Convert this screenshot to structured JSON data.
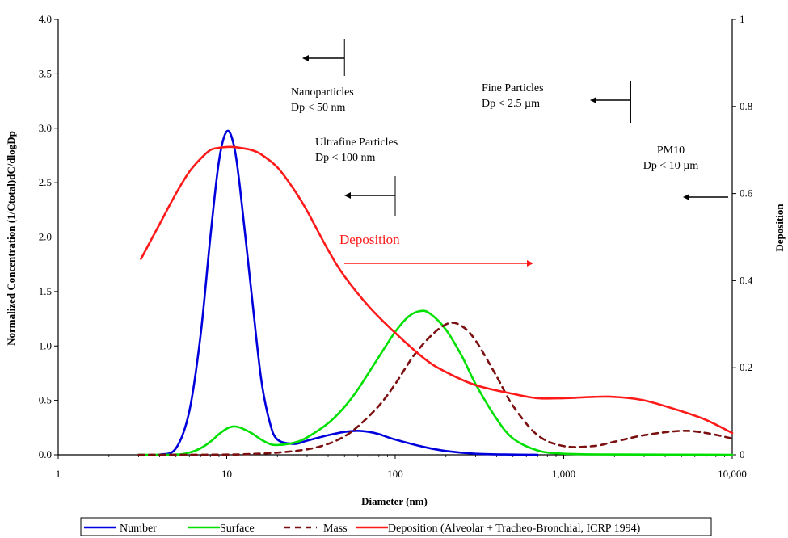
{
  "chart_data": {
    "type": "line",
    "xlabel": "Diameter (nm)",
    "ylabel": "Normalized Concentration  (1/Ctotal)dC/dlogDp",
    "y2label": "Deposition",
    "xscale": "log",
    "xlim": [
      1,
      10000
    ],
    "ylim": [
      0,
      4.0
    ],
    "y2lim": [
      0,
      1
    ],
    "x_ticks": [
      1,
      10,
      100,
      1000,
      10000
    ],
    "x_tick_labels": [
      "1",
      "10",
      "100",
      "1,000",
      "10,000"
    ],
    "y_ticks": [
      0,
      0.5,
      1.0,
      1.5,
      2.0,
      2.5,
      3.0,
      3.5,
      4.0
    ],
    "y_tick_labels": [
      "0.0",
      "0.5",
      "1.0",
      "1.5",
      "2.0",
      "2.5",
      "3.0",
      "3.5",
      "4.0"
    ],
    "y2_ticks": [
      0,
      0.2,
      0.4,
      0.6,
      0.8,
      1
    ],
    "y2_tick_labels": [
      "0",
      "0.2",
      "0.4",
      "0.6",
      "0.8",
      "1"
    ],
    "grid": false,
    "legend_position": "bottom",
    "series": [
      {
        "name": "Number",
        "color": "#0000dd",
        "dash": "solid",
        "axis": "left",
        "x": [
          3,
          4,
          5,
          6,
          7,
          8,
          9,
          10,
          11,
          12,
          14,
          16,
          18,
          20,
          25,
          30,
          40,
          50,
          60,
          70,
          80,
          100,
          150,
          200,
          300,
          500,
          700
        ],
        "y": [
          0,
          0.002,
          0.06,
          0.4,
          1.1,
          2.0,
          2.7,
          2.97,
          2.85,
          2.45,
          1.5,
          0.7,
          0.3,
          0.14,
          0.1,
          0.13,
          0.18,
          0.21,
          0.22,
          0.21,
          0.19,
          0.14,
          0.07,
          0.035,
          0.01,
          0.002,
          0
        ]
      },
      {
        "name": "Surface",
        "color": "#00e000",
        "dash": "solid",
        "axis": "left",
        "x": [
          3,
          5,
          6,
          7,
          8,
          9,
          10,
          11,
          12,
          14,
          16,
          18,
          20,
          25,
          30,
          40,
          50,
          60,
          80,
          100,
          120,
          140,
          160,
          200,
          250,
          300,
          400,
          500,
          700,
          1000,
          2000,
          10000
        ],
        "y": [
          0,
          0.002,
          0.02,
          0.06,
          0.12,
          0.19,
          0.24,
          0.26,
          0.25,
          0.2,
          0.14,
          0.1,
          0.09,
          0.11,
          0.16,
          0.29,
          0.44,
          0.6,
          0.9,
          1.13,
          1.27,
          1.32,
          1.3,
          1.15,
          0.9,
          0.65,
          0.33,
          0.15,
          0.04,
          0.01,
          0.003,
          0
        ]
      },
      {
        "name": "Mass",
        "color": "#7b1010",
        "dash": "dashed",
        "axis": "left",
        "x": [
          3,
          10,
          15,
          20,
          30,
          40,
          50,
          60,
          80,
          100,
          130,
          170,
          210,
          250,
          300,
          400,
          500,
          700,
          1000,
          1500,
          2000,
          3000,
          5000,
          7000,
          10000
        ],
        "y": [
          0,
          0.002,
          0.01,
          0.02,
          0.05,
          0.1,
          0.17,
          0.26,
          0.45,
          0.65,
          0.92,
          1.12,
          1.21,
          1.18,
          1.05,
          0.72,
          0.45,
          0.18,
          0.08,
          0.08,
          0.12,
          0.18,
          0.22,
          0.2,
          0.15
        ]
      },
      {
        "name": "Deposition (Alveolar + Tracheo-Bronchial, ICRP 1994)",
        "color": "#ff1a1a",
        "dash": "solid",
        "axis": "right",
        "x": [
          3.1,
          4,
          5,
          6,
          7,
          8,
          9,
          10,
          11,
          12,
          14,
          16,
          20,
          25,
          30,
          40,
          50,
          70,
          100,
          150,
          200,
          300,
          500,
          700,
          1000,
          1500,
          2000,
          3000,
          5000,
          7000,
          10000
        ],
        "y": [
          0.45,
          0.53,
          0.6,
          0.65,
          0.68,
          0.7,
          0.705,
          0.707,
          0.707,
          0.705,
          0.7,
          0.69,
          0.66,
          0.61,
          0.56,
          0.47,
          0.41,
          0.34,
          0.28,
          0.22,
          0.19,
          0.16,
          0.14,
          0.13,
          0.13,
          0.133,
          0.133,
          0.125,
          0.1,
          0.08,
          0.05
        ]
      }
    ],
    "annotations": [
      {
        "id": "nano",
        "lines": [
          "Nanoparticles",
          "Dp < 50 nm"
        ],
        "x": 50,
        "color": "#000000"
      },
      {
        "id": "ultra",
        "lines": [
          "Ultrafine Particles",
          "Dp < 100 nm"
        ],
        "x": 100,
        "color": "#000000"
      },
      {
        "id": "fine",
        "lines": [
          "Fine Particles",
          "Dp < 2.5 µm"
        ],
        "x": 2500,
        "color": "#000000"
      },
      {
        "id": "pm10",
        "lines": [
          "PM10",
          "Dp < 10 µm"
        ],
        "x": 10000,
        "color": "#000000"
      },
      {
        "id": "deposition",
        "lines": [
          "Deposition"
        ],
        "color": "#ff1a1a"
      }
    ]
  }
}
